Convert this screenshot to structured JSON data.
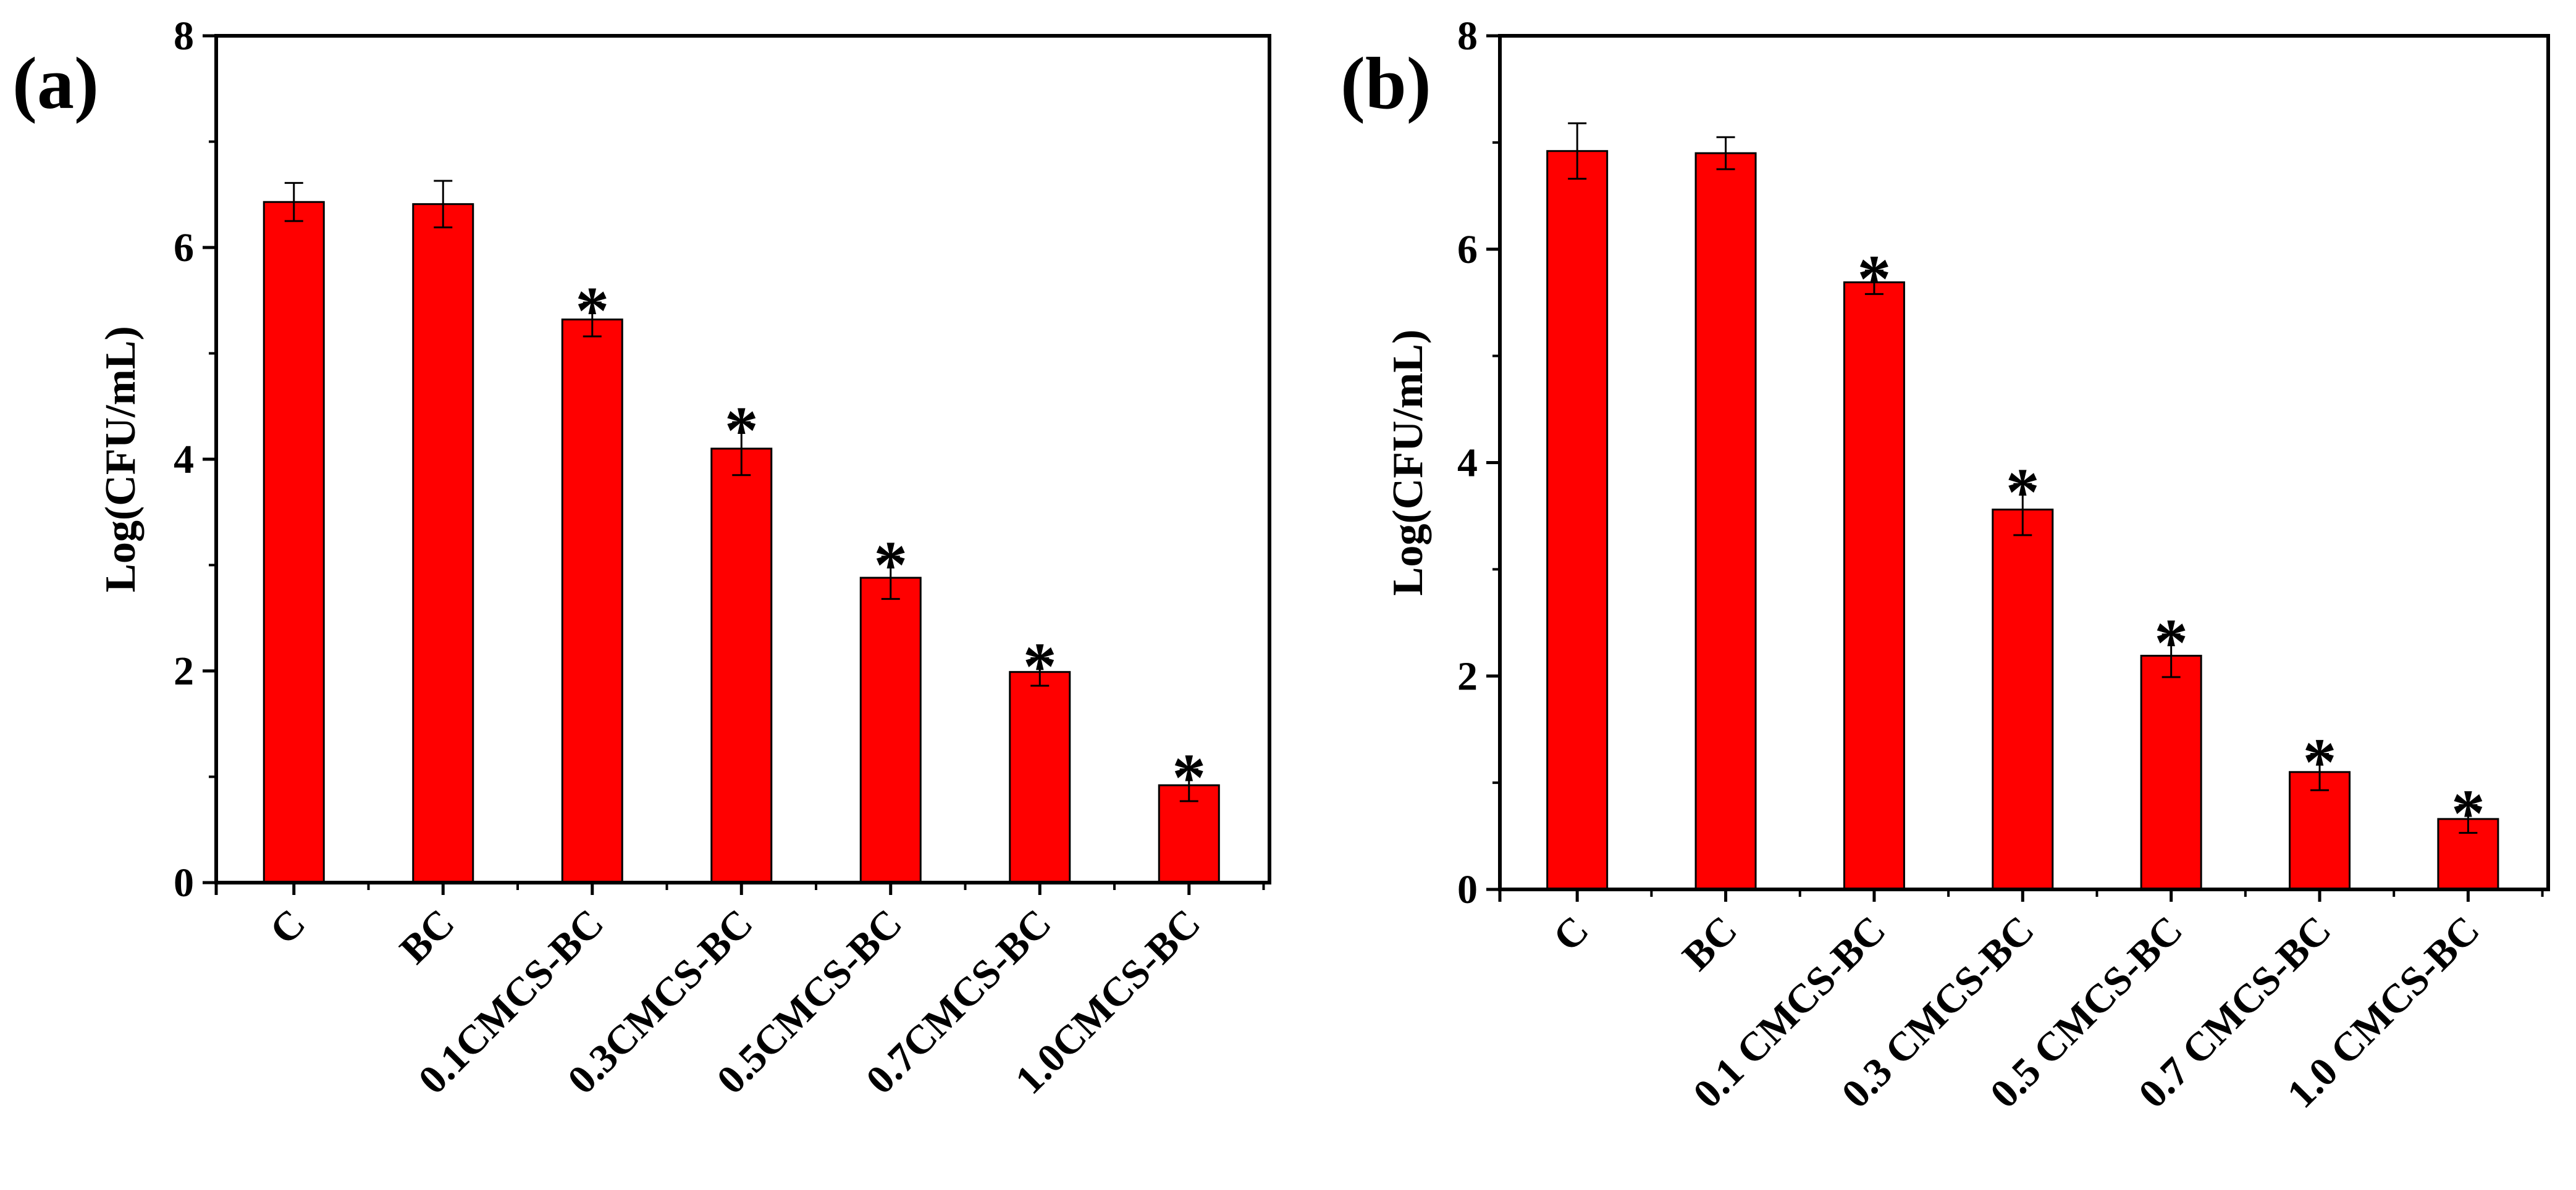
{
  "chart_data": [
    {
      "type": "bar",
      "panel_label": "(a)",
      "title": "",
      "xlabel": "",
      "ylabel": "Log(CFU/mL)",
      "ylim": [
        0,
        8
      ],
      "yticks": [
        "0",
        "2",
        "4",
        "6",
        "8"
      ],
      "categories": [
        "C",
        "BC",
        "0.1CMCS-BC",
        "0.3CMCS-BC",
        "0.5CMCS-BC",
        "0.7CMCS-BC",
        "1.0CMCS-BC"
      ],
      "values": [
        6.43,
        6.41,
        5.32,
        4.1,
        2.88,
        1.99,
        0.92
      ],
      "errors": [
        0.18,
        0.22,
        0.16,
        0.25,
        0.2,
        0.13,
        0.15
      ],
      "significance": [
        "",
        "",
        "*",
        "*",
        "*",
        "*",
        "*"
      ],
      "bar_color": "#ff0000"
    },
    {
      "type": "bar",
      "panel_label": "(b)",
      "title": "",
      "xlabel": "",
      "ylabel": "Log(CFU/mL)",
      "ylim": [
        0,
        8
      ],
      "yticks": [
        "0",
        "2",
        "4",
        "6",
        "8"
      ],
      "categories": [
        "C",
        "BC",
        "0.1 CMCS-BC",
        "0.3 CMCS-BC",
        "0.5 CMCS-BC",
        "0.7 CMCS-BC",
        "1.0 CMCS-BC"
      ],
      "values": [
        6.92,
        6.9,
        5.69,
        3.56,
        2.19,
        1.1,
        0.66
      ],
      "errors": [
        0.26,
        0.15,
        0.11,
        0.24,
        0.2,
        0.17,
        0.13
      ],
      "significance": [
        "",
        "",
        "*",
        "*",
        "*",
        "*",
        "*"
      ],
      "bar_color": "#ff0000"
    }
  ]
}
